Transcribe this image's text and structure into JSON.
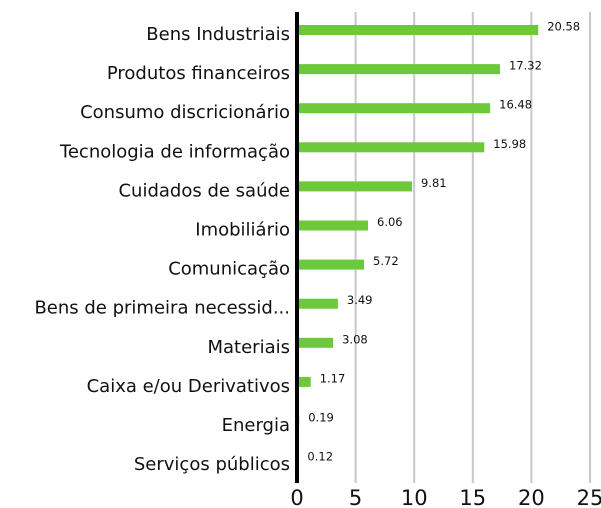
{
  "chart_data": {
    "type": "bar",
    "orientation": "horizontal",
    "categories": [
      "Bens Industriais",
      "Produtos financeiros",
      "Consumo discricionário",
      "Tecnologia de informação",
      "Cuidados de saúde",
      "Imobiliário",
      "Comunicação",
      "Bens de primeira necessid...",
      "Materiais",
      "Caixa e/ou Derivativos",
      "Energia",
      "Serviços públicos"
    ],
    "values": [
      20.58,
      17.32,
      16.48,
      15.98,
      9.81,
      6.06,
      5.72,
      3.49,
      3.08,
      1.17,
      0.19,
      0.12
    ],
    "color": "#6cc93a",
    "xlim": [
      0,
      25
    ],
    "xticks": [
      0,
      5,
      10,
      15,
      20,
      25
    ],
    "grid": true
  }
}
